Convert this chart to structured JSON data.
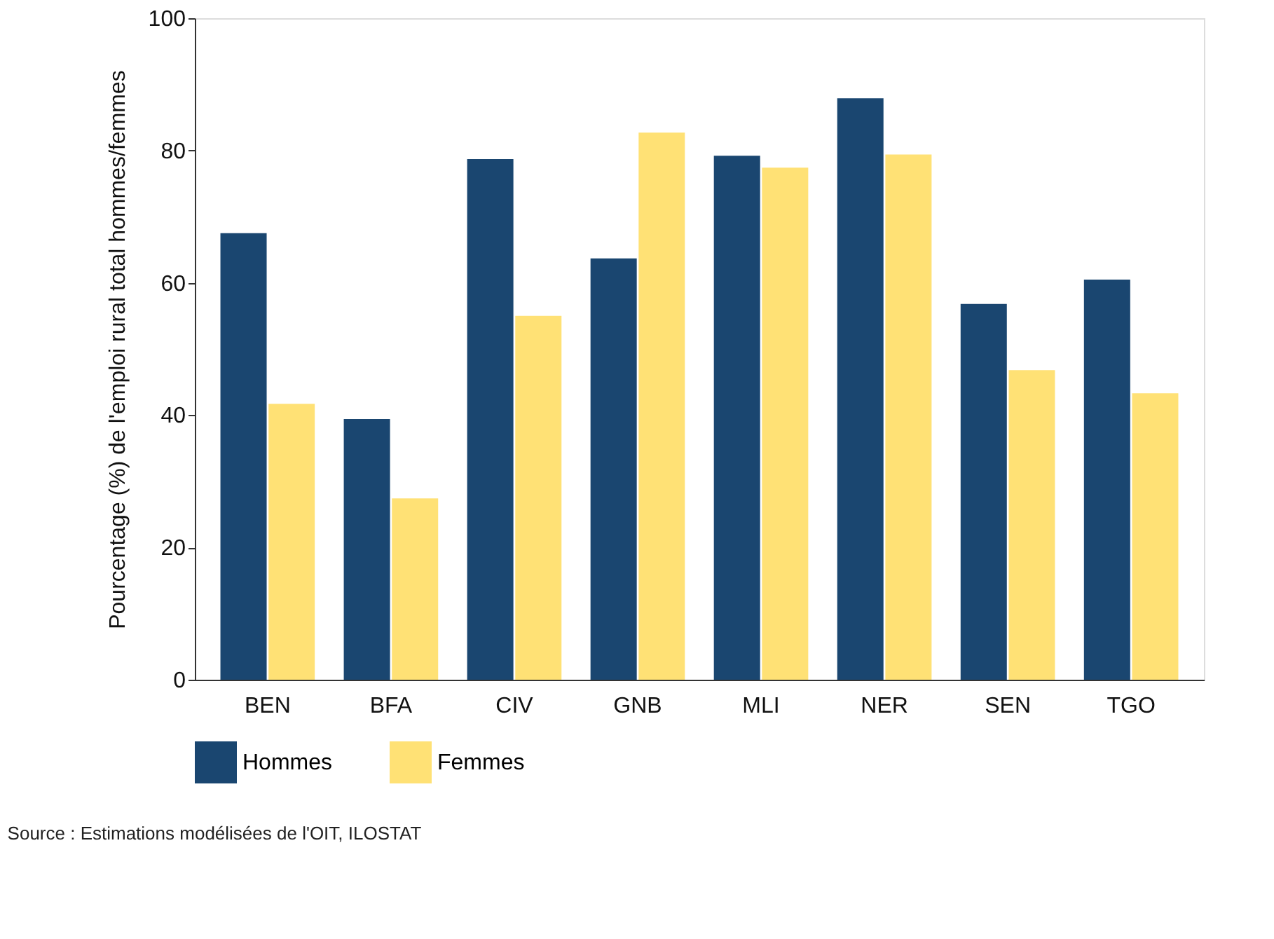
{
  "chart_data": {
    "type": "bar",
    "ylabel": "Pourcentage (%) de l'emploi rural total hommes/femmes",
    "categories": [
      "BEN",
      "BFA",
      "CIV",
      "GNB",
      "MLI",
      "NER",
      "SEN",
      "TGO"
    ],
    "series": [
      {
        "name": "Hommes",
        "color": "#1a4670",
        "values": [
          67.5,
          39.4,
          78.7,
          63.7,
          79.2,
          87.9,
          56.8,
          60.5
        ]
      },
      {
        "name": "Femmes",
        "color": "#ffe175",
        "values": [
          41.7,
          27.4,
          55.0,
          82.7,
          77.4,
          79.4,
          46.8,
          43.3
        ]
      }
    ],
    "ylim": [
      0,
      100
    ],
    "yticks": [
      0,
      20,
      40,
      60,
      80,
      100
    ],
    "grid": false,
    "legend": "bottom",
    "annotations": [
      "Source : Estimations modélisées de l'OIT, ILOSTAT"
    ]
  }
}
